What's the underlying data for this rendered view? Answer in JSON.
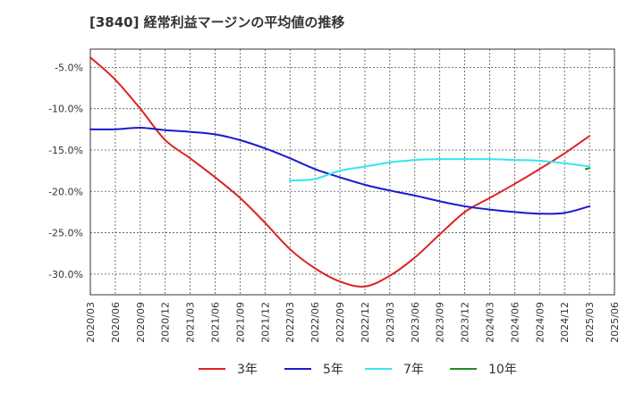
{
  "chart_data": {
    "type": "line",
    "title": "[3840]  経常利益マージンの平均値の推移",
    "xlabel": "",
    "ylabel": "",
    "x": [
      "2020/03",
      "2020/06",
      "2020/09",
      "2020/12",
      "2021/03",
      "2021/06",
      "2021/09",
      "2021/12",
      "2022/03",
      "2022/06",
      "2022/09",
      "2022/12",
      "2023/03",
      "2023/06",
      "2023/09",
      "2023/12",
      "2024/03",
      "2024/06",
      "2024/09",
      "2024/12",
      "2025/03",
      "2025/06"
    ],
    "y_ticks": [
      "-5.0%",
      "-10.0%",
      "-15.0%",
      "-20.0%",
      "-25.0%",
      "-30.0%"
    ],
    "y_tick_values": [
      -5,
      -10,
      -15,
      -20,
      -25,
      -30
    ],
    "ylim": [
      -32.5,
      -2.8
    ],
    "grid": true,
    "legend_position": "bottom",
    "series": [
      {
        "name": "3年",
        "color": "#dd2222",
        "values": [
          -3.8,
          -6.5,
          -10.0,
          -13.8,
          -16.0,
          -18.3,
          -20.8,
          -23.8,
          -27.0,
          -29.3,
          -30.9,
          -31.5,
          -30.2,
          -28.0,
          -25.2,
          -22.5,
          -20.8,
          -19.1,
          -17.3,
          -15.4,
          -13.3,
          null
        ]
      },
      {
        "name": "5年",
        "color": "#1a1acc",
        "values": [
          -12.5,
          -12.5,
          -12.3,
          -12.6,
          -12.8,
          -13.1,
          -13.8,
          -14.8,
          -16.0,
          -17.3,
          -18.3,
          -19.2,
          -19.9,
          -20.5,
          -21.2,
          -21.8,
          -22.2,
          -22.5,
          -22.7,
          -22.6,
          -21.8,
          null
        ]
      },
      {
        "name": "7年",
        "color": "#33e6f0",
        "values": [
          null,
          null,
          null,
          null,
          null,
          null,
          null,
          null,
          -18.7,
          -18.5,
          -17.5,
          -17.0,
          -16.5,
          -16.2,
          -16.1,
          -16.1,
          -16.1,
          -16.2,
          -16.3,
          -16.6,
          -17.0,
          null
        ]
      },
      {
        "name": "10年",
        "color": "#228b22",
        "values": [
          null,
          null,
          null,
          null,
          null,
          null,
          null,
          null,
          null,
          null,
          null,
          null,
          null,
          null,
          null,
          null,
          null,
          null,
          null,
          null,
          -17.2,
          null
        ],
        "segment": {
          "from_x_offset": -0.15,
          "from_value": -17.3
        }
      }
    ]
  }
}
